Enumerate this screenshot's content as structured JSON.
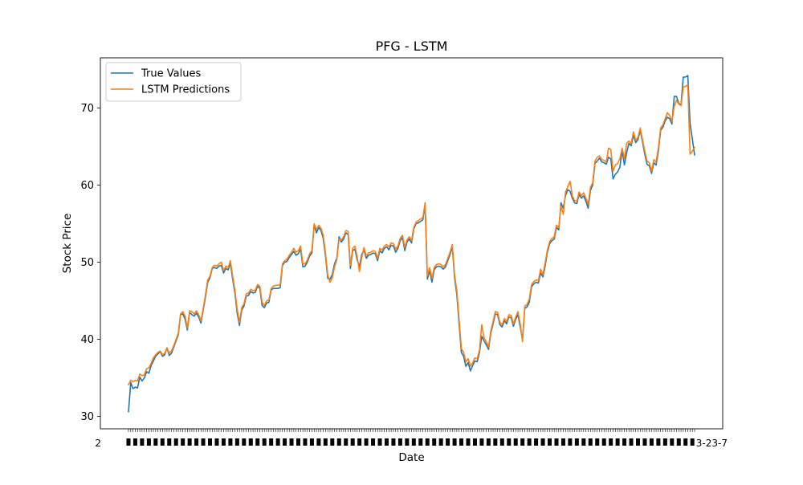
{
  "chart_data": {
    "type": "line",
    "title": "PFG - LSTM",
    "xlabel": "Date",
    "ylabel": "Stock Price",
    "ylim": [
      28.4,
      76.5
    ],
    "yticks": [
      30,
      40,
      50,
      60,
      70
    ],
    "x_tick_label_fragments": [
      "2",
      "3-23-7"
    ],
    "grid": false,
    "legend_position": "upper left",
    "series": [
      {
        "name": "True Values",
        "color": "#1f77b4",
        "values": [
          30.6,
          34.4,
          33.6,
          33.8,
          33.7,
          35.1,
          34.6,
          35.0,
          35.8,
          35.6,
          36.6,
          37.2,
          37.8,
          38.1,
          38.4,
          37.8,
          38.0,
          38.9,
          37.9,
          38.2,
          39.0,
          39.8,
          40.6,
          43.2,
          43.3,
          42.6,
          41.2,
          43.5,
          43.2,
          43.0,
          43.4,
          42.9,
          42.1,
          43.8,
          45.5,
          47.4,
          48.0,
          49.2,
          49.3,
          49.2,
          49.5,
          49.6,
          48.6,
          49.2,
          49.0,
          49.9,
          47.8,
          46.0,
          43.4,
          41.8,
          43.8,
          44.3,
          45.6,
          45.7,
          46.2,
          46.0,
          46.1,
          46.9,
          46.6,
          44.4,
          44.1,
          44.7,
          44.8,
          46.4,
          46.6,
          46.6,
          46.6,
          46.7,
          49.6,
          50.0,
          50.1,
          50.6,
          51.0,
          51.4,
          50.9,
          51.1,
          51.7,
          49.4,
          49.5,
          50.0,
          50.8,
          51.2,
          54.8,
          53.8,
          54.5,
          54.1,
          53.1,
          50.8,
          47.9,
          47.8,
          48.4,
          49.8,
          50.5,
          53.3,
          52.6,
          53.0,
          53.8,
          53.6,
          49.2,
          51.5,
          51.7,
          50.3,
          49.4,
          51.0,
          51.6,
          50.5,
          50.9,
          51.0,
          51.2,
          51.1,
          50.2,
          51.5,
          51.2,
          51.8,
          52.0,
          51.6,
          52.2,
          52.1,
          51.3,
          51.8,
          52.8,
          53.2,
          51.5,
          52.6,
          53.0,
          52.5,
          54.3,
          55.0,
          55.1,
          55.3,
          55.5,
          57.4,
          47.8,
          48.9,
          47.4,
          49.0,
          49.4,
          49.5,
          49.4,
          49.1,
          49.4,
          50.2,
          51.0,
          52.0,
          48.0,
          45.8,
          42.0,
          38.3,
          37.8,
          36.5,
          37.0,
          35.9,
          36.6,
          37.2,
          37.1,
          38.3,
          40.4,
          39.8,
          39.3,
          38.7,
          40.8,
          42.0,
          43.3,
          43.2,
          41.9,
          41.6,
          42.4,
          42.0,
          42.9,
          42.8,
          41.7,
          42.6,
          43.2,
          41.6,
          40.0,
          44.0,
          44.2,
          44.8,
          46.8,
          47.2,
          47.4,
          47.3,
          48.6,
          48.1,
          49.5,
          51.3,
          52.4,
          52.8,
          53.0,
          54.5,
          54.2,
          57.7,
          57.0,
          58.6,
          59.4,
          59.2,
          58.3,
          57.7,
          57.6,
          58.8,
          58.3,
          58.6,
          57.9,
          57.0,
          59.3,
          60.0,
          62.8,
          63.1,
          63.5,
          63.0,
          62.9,
          62.7,
          63.6,
          63.4,
          60.8,
          61.4,
          61.7,
          62.3,
          64.5,
          62.6,
          64.2,
          65.4,
          65.1,
          66.5,
          65.5,
          65.9,
          67.1,
          65.6,
          64.0,
          62.7,
          62.5,
          61.5,
          62.9,
          62.6,
          64.4,
          67.1,
          67.5,
          68.3,
          68.8,
          68.6,
          67.9,
          71.5,
          71.5,
          70.6,
          70.4,
          74.0,
          74.0,
          74.2,
          68.0,
          66.0,
          63.9
        ]
      },
      {
        "name": "LSTM Predictions",
        "color": "#ff7f0e",
        "values": [
          34.1,
          34.7,
          34.5,
          34.7,
          34.6,
          35.5,
          35.3,
          35.4,
          36.2,
          36.3,
          36.9,
          37.6,
          38.0,
          38.3,
          38.5,
          38.0,
          38.2,
          38.9,
          38.2,
          38.5,
          39.2,
          40.0,
          40.8,
          43.3,
          43.6,
          43.0,
          41.5,
          43.7,
          43.6,
          43.3,
          43.7,
          43.2,
          42.4,
          44.0,
          45.8,
          47.7,
          48.2,
          49.3,
          49.6,
          49.5,
          49.8,
          50.0,
          48.9,
          49.5,
          49.3,
          50.2,
          48.2,
          46.4,
          43.9,
          42.2,
          44.1,
          44.6,
          45.9,
          46.0,
          46.5,
          46.3,
          46.4,
          47.1,
          46.9,
          44.8,
          44.4,
          45.0,
          45.1,
          46.6,
          46.9,
          47.0,
          47.0,
          47.1,
          49.8,
          50.2,
          50.4,
          50.9,
          51.3,
          51.8,
          51.3,
          51.5,
          52.1,
          49.8,
          49.8,
          50.3,
          51.1,
          51.5,
          55.0,
          54.2,
          54.8,
          54.4,
          53.5,
          51.2,
          48.3,
          47.4,
          48.0,
          49.4,
          50.3,
          53.0,
          52.9,
          53.3,
          54.1,
          54.0,
          49.6,
          51.8,
          52.1,
          50.7,
          48.8,
          50.6,
          51.9,
          50.8,
          51.2,
          51.3,
          51.5,
          51.4,
          50.5,
          51.8,
          51.6,
          52.1,
          52.3,
          52.0,
          52.5,
          52.4,
          51.7,
          52.1,
          53.1,
          53.5,
          51.9,
          52.9,
          53.3,
          52.8,
          54.5,
          55.2,
          55.4,
          55.6,
          55.8,
          57.7,
          48.2,
          49.3,
          47.9,
          49.3,
          49.7,
          49.8,
          49.7,
          49.4,
          49.7,
          50.5,
          51.3,
          52.3,
          48.4,
          46.3,
          42.6,
          38.8,
          38.3,
          37.1,
          37.5,
          36.5,
          37.0,
          37.6,
          37.5,
          38.6,
          41.9,
          40.2,
          39.7,
          39.0,
          41.1,
          42.3,
          43.6,
          43.5,
          42.2,
          41.9,
          42.7,
          42.3,
          43.2,
          43.1,
          42.0,
          42.9,
          43.6,
          42.0,
          39.7,
          44.3,
          44.5,
          45.2,
          47.1,
          47.5,
          47.7,
          47.6,
          49.1,
          48.4,
          49.9,
          51.6,
          52.7,
          53.1,
          53.3,
          54.8,
          54.5,
          57.3,
          56.2,
          59.1,
          59.8,
          60.5,
          58.6,
          58.0,
          57.9,
          59.1,
          58.6,
          59.0,
          58.3,
          57.5,
          59.7,
          60.3,
          63.1,
          63.6,
          63.8,
          63.3,
          63.2,
          63.0,
          64.8,
          64.6,
          61.8,
          62.6,
          62.8,
          63.4,
          64.8,
          63.4,
          65.4,
          65.7,
          65.4,
          66.9,
          65.8,
          66.2,
          67.4,
          65.9,
          64.4,
          63.1,
          62.9,
          61.8,
          63.3,
          63.0,
          64.8,
          67.4,
          67.8,
          68.6,
          69.4,
          69.0,
          68.2,
          70.2,
          71.0,
          70.5,
          70.3,
          72.7,
          72.8,
          73.0,
          64.0,
          64.4,
          64.9
        ]
      }
    ]
  }
}
